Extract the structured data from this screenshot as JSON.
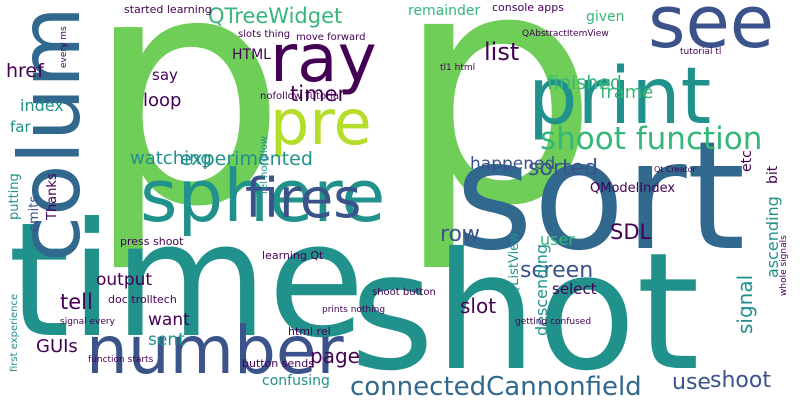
{
  "palette": {
    "background": "#ffffff",
    "purple": "#440154",
    "indigo": "#3b528b",
    "blue": "#31688e",
    "teal": "#21918c",
    "green": "#35b779",
    "lime": "#6ece58",
    "yellow": "#b5de2b"
  },
  "words": [
    "p",
    "p",
    "sort",
    "time",
    "shot",
    "print",
    "sphere",
    "column",
    "see",
    "ray",
    "pre",
    "number",
    "fires",
    "shoot function",
    "connectedCannonfield",
    "timer",
    "QTreeWidget",
    "screen",
    "shoot",
    "sorted",
    "row",
    "list",
    "SDL",
    "page",
    "tell",
    "slot",
    "loop",
    "happened",
    "finished",
    "experimented",
    "index",
    "signal",
    "use",
    "descending",
    "ascending",
    "output",
    "watching",
    "href",
    "HTML",
    "want",
    "sent",
    "QListView",
    "QModelIndex",
    "frame",
    "user",
    "bit",
    "select",
    "etc",
    "say",
    "far",
    "given",
    "remainder",
    "console apps",
    "emits",
    "Thanks",
    "putting",
    "learning Qt",
    "shoot button",
    "press shoot",
    "button sends",
    "html rel",
    "confusing",
    "GUIs",
    "doc trolltech",
    "started learning",
    "slots thing",
    "move forward",
    "nofollow Tutorial",
    "QAbstractItemView",
    "tl1 html",
    "tutorial tl",
    "whole signals",
    "rel nofollow",
    "first experience",
    "every ms",
    "function starts",
    "signal every",
    "Qt Creator",
    "getting confused",
    "prints nothing"
  ]
}
